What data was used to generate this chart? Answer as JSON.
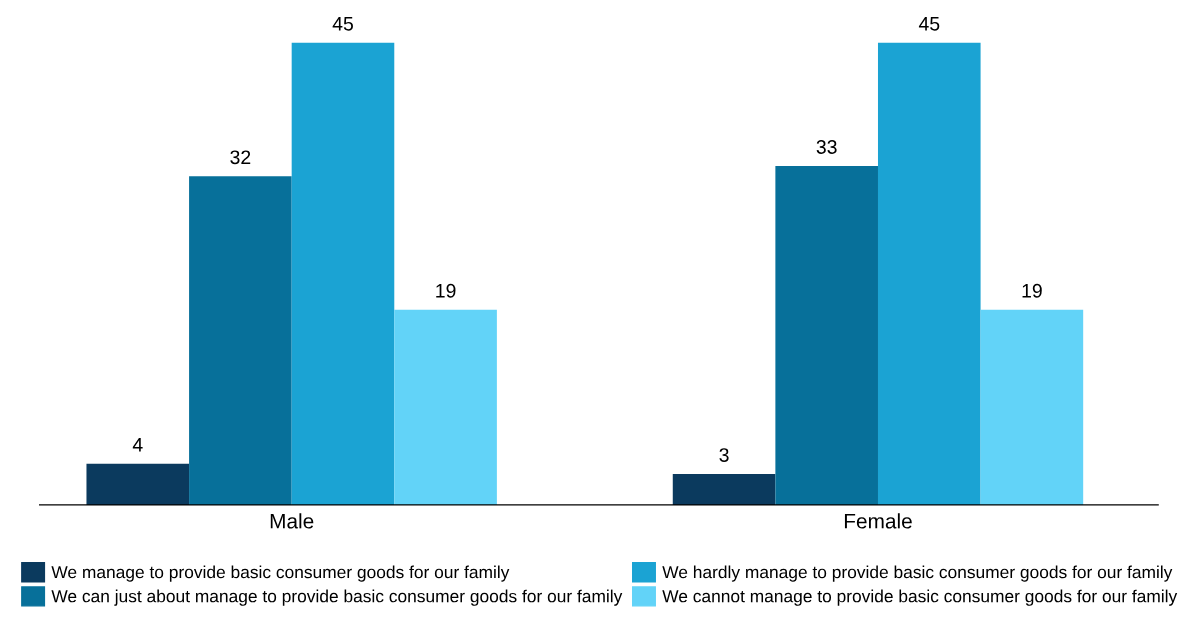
{
  "chart_data": {
    "type": "bar",
    "categories": [
      "Male",
      "Female"
    ],
    "series": [
      {
        "name": "We manage to provide basic consumer goods for our family",
        "color": "#0b3a5e",
        "values": [
          4,
          3
        ]
      },
      {
        "name": "We can just about manage to provide basic consumer goods for our family",
        "color": "#07709a",
        "values": [
          32,
          33
        ]
      },
      {
        "name": "We hardly manage to provide basic consumer goods for our family",
        "color": "#1ba3d3",
        "values": [
          45,
          45
        ]
      },
      {
        "name": "We cannot manage to provide basic consumer goods for our family",
        "color": "#62d3f8",
        "values": [
          19,
          19
        ]
      }
    ],
    "data_labels": true,
    "legend": "bottom",
    "grid": false
  }
}
